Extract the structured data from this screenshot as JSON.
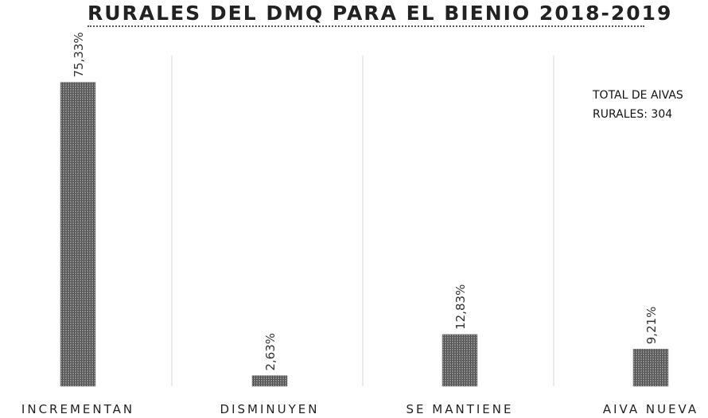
{
  "chart_data": {
    "type": "bar",
    "title": "RURALES DEL DMQ PARA EL BIENIO 2018-2019",
    "categories": [
      "INCREMENTAN",
      "DISMINUYEN",
      "SE MANTIENE",
      "AIVA NUEVA"
    ],
    "series": [
      {
        "values": [
          75.33,
          2.63,
          12.83,
          9.21
        ]
      }
    ],
    "data_labels": [
      "75,33%",
      "2,63%",
      "12,83%",
      "9,21%"
    ],
    "annotation": [
      "TOTAL DE AIVAS",
      "RURALES: 304"
    ],
    "ylim": [
      0,
      78
    ],
    "grid": "vertical separators between categories",
    "bar_color": "#6e6e6e",
    "gridline_color": "#d9d9d9"
  }
}
